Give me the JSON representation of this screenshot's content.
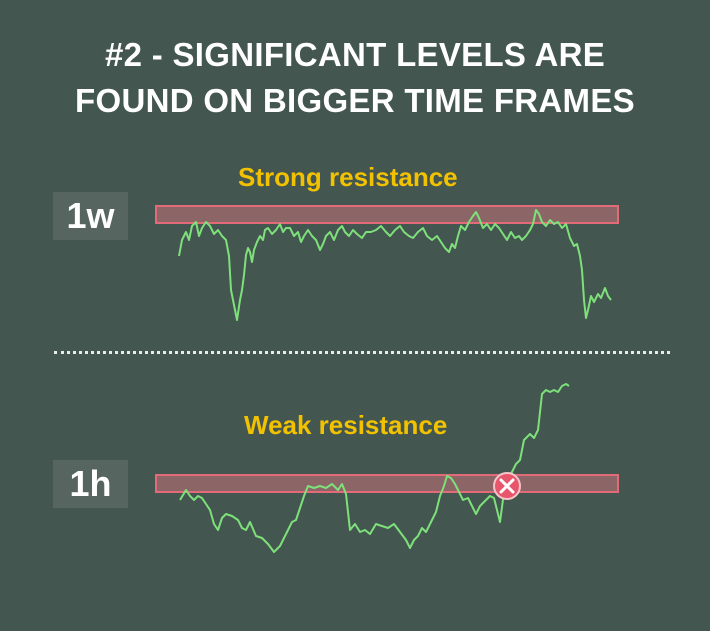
{
  "title": {
    "line1": "#2 -  SIGNIFICANT LEVELS ARE",
    "line2": "FOUND ON BIGGER TIME FRAMES"
  },
  "weekly": {
    "timeframe": "1w",
    "resistance_label": "Strong resistance"
  },
  "hourly": {
    "timeframe": "1h",
    "resistance_label": "Weak resistance",
    "break_marker_icon": "x-circle-icon"
  },
  "colors": {
    "background": "#435650",
    "label_yellow": "#f2c200",
    "price_line": "#7ee07a",
    "resistance_band": "#e36a78",
    "marker": "#e8566b"
  }
}
